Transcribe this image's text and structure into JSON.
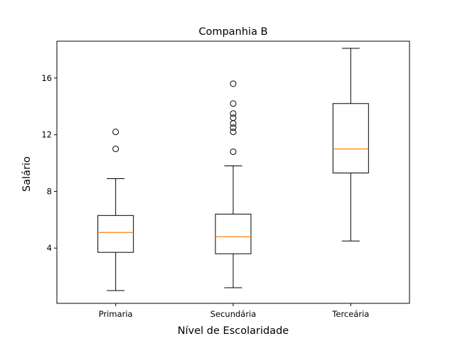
{
  "chart_data": {
    "type": "boxplot",
    "title": "Companhia B",
    "xlabel": "Nível de Escolaridade",
    "ylabel": "Salário",
    "ylim": [
      0.1,
      18.6
    ],
    "yticks": [
      4,
      8,
      12,
      16
    ],
    "grid": false,
    "categories": [
      "Primaria",
      "Secundária",
      "Terceária"
    ],
    "boxes": [
      {
        "category": "Primaria",
        "whisker_low": 1.0,
        "q1": 3.7,
        "median": 5.1,
        "q3": 6.3,
        "whisker_high": 8.9,
        "outliers": [
          11.0,
          12.2
        ]
      },
      {
        "category": "Secundária",
        "whisker_low": 1.2,
        "q1": 3.6,
        "median": 4.8,
        "q3": 6.4,
        "whisker_high": 9.8,
        "outliers": [
          10.8,
          12.2,
          12.5,
          12.8,
          13.2,
          13.5,
          14.2,
          15.6
        ]
      },
      {
        "category": "Terceária",
        "whisker_low": 4.5,
        "q1": 9.3,
        "median": 11.0,
        "q3": 14.2,
        "whisker_high": 18.1,
        "outliers": []
      }
    ],
    "colors": {
      "box": "#000000",
      "median": "#ff7f0e",
      "background": "#ffffff"
    }
  }
}
